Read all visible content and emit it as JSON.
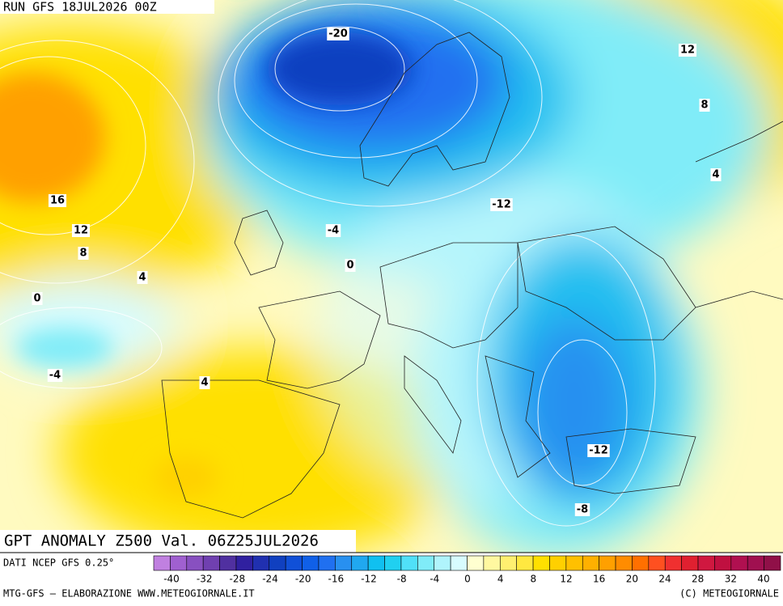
{
  "header": {
    "run": "RUN GFS 18JUL2026 00Z"
  },
  "map": {
    "contour_labels": [
      -20,
      12,
      8,
      4,
      -12,
      16,
      12,
      8,
      -4,
      0,
      4,
      0,
      -4,
      4,
      -12,
      -8
    ]
  },
  "footer": {
    "title": "GPT ANOMALY Z500 Val. 06Z25JUL2026",
    "source": "DATI NCEP GFS 0.25°",
    "credit_left": "MTG-GFS — ELABORAZIONE WWW.METEOGIORNALE.IT",
    "credit_right": "(C) METEOGIORNALE"
  },
  "scale": {
    "ticks": [
      -40,
      -32,
      -28,
      -24,
      -20,
      -16,
      -12,
      -8,
      -4,
      0,
      4,
      8,
      12,
      16,
      20,
      24,
      28,
      32,
      40
    ],
    "colors": [
      "#c080e0",
      "#a060d0",
      "#8850c0",
      "#7040b0",
      "#5030a0",
      "#3020a0",
      "#2030b0",
      "#1040c0",
      "#1050d8",
      "#1060e8",
      "#2070f0",
      "#2890f0",
      "#20a8f0",
      "#10c0f0",
      "#20d0f0",
      "#50e0f8",
      "#80ecf8",
      "#b0f4fc",
      "#d8fcff",
      "#ffffd0",
      "#fff8a0",
      "#fff070",
      "#ffe840",
      "#ffe000",
      "#ffd000",
      "#ffc000",
      "#ffb000",
      "#ffa000",
      "#ff8c00",
      "#ff7000",
      "#ff5020",
      "#f03030",
      "#e02030",
      "#d01840",
      "#c01040",
      "#b01050",
      "#a01050",
      "#901048"
    ]
  }
}
